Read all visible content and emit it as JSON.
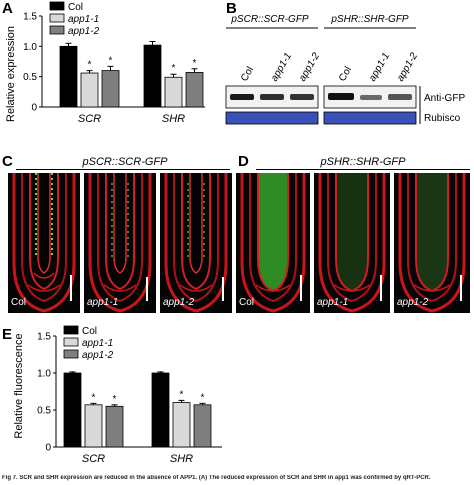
{
  "panels": {
    "A": {
      "letter": "A",
      "chart_data": {
        "type": "bar",
        "ylabel": "Relative expression",
        "categories": [
          "SCR",
          "SHR"
        ],
        "ylim": [
          0,
          1.5
        ],
        "yticks": [
          "0",
          "0.5",
          "1.0",
          "1.5"
        ],
        "series": [
          {
            "name": "Col",
            "values": [
              1.0,
              1.02
            ],
            "errors": [
              0.05,
              0.06
            ],
            "color": "#000000"
          },
          {
            "name": "app1-1",
            "values": [
              0.56,
              0.49
            ],
            "errors": [
              0.04,
              0.05
            ],
            "color": "#d9d9d9"
          },
          {
            "name": "app1-2",
            "values": [
              0.6,
              0.57
            ],
            "errors": [
              0.07,
              0.06
            ],
            "color": "#7f7f7f"
          }
        ],
        "significance_marker": "*"
      }
    },
    "B": {
      "letter": "B",
      "construct_left": "pSCR::SCR-GFP",
      "construct_right": "pSHR::SHR-GFP",
      "lanes_left": [
        "Col",
        "app1-1",
        "app1-2"
      ],
      "lanes_right": [
        "Col",
        "app1-1",
        "app1-2"
      ],
      "blot_label": "Anti-GFP",
      "loading_label": "Rubisco"
    },
    "C": {
      "letter": "C",
      "construct": "pSCR::SCR-GFP",
      "images": [
        "Col",
        "app1-1",
        "app1-2"
      ]
    },
    "D": {
      "letter": "D",
      "construct": "pSHR::SHR-GFP",
      "images": [
        "Col",
        "app1-1",
        "app1-2"
      ]
    },
    "E": {
      "letter": "E",
      "chart_data": {
        "type": "bar",
        "ylabel": "Relative fluorescence",
        "categories": [
          "SCR",
          "SHR"
        ],
        "ylim": [
          0,
          1.5
        ],
        "yticks": [
          "0",
          "0.5",
          "1.0",
          "1.5"
        ],
        "series": [
          {
            "name": "Col",
            "values": [
              1.0,
              1.0
            ],
            "errors": [
              0.015,
              0.015
            ],
            "color": "#000000"
          },
          {
            "name": "app1-1",
            "values": [
              0.57,
              0.6
            ],
            "errors": [
              0.02,
              0.03
            ],
            "color": "#d9d9d9"
          },
          {
            "name": "app1-2",
            "values": [
              0.55,
              0.57
            ],
            "errors": [
              0.02,
              0.02
            ],
            "color": "#7f7f7f"
          }
        ],
        "significance_marker": "*"
      }
    }
  },
  "caption": "Fig 7. SCR and SHR expression are reduced in the absence of APP1. (A) The reduced expression of SCR and SHR in app1 was confirmed by qRT-PCR."
}
